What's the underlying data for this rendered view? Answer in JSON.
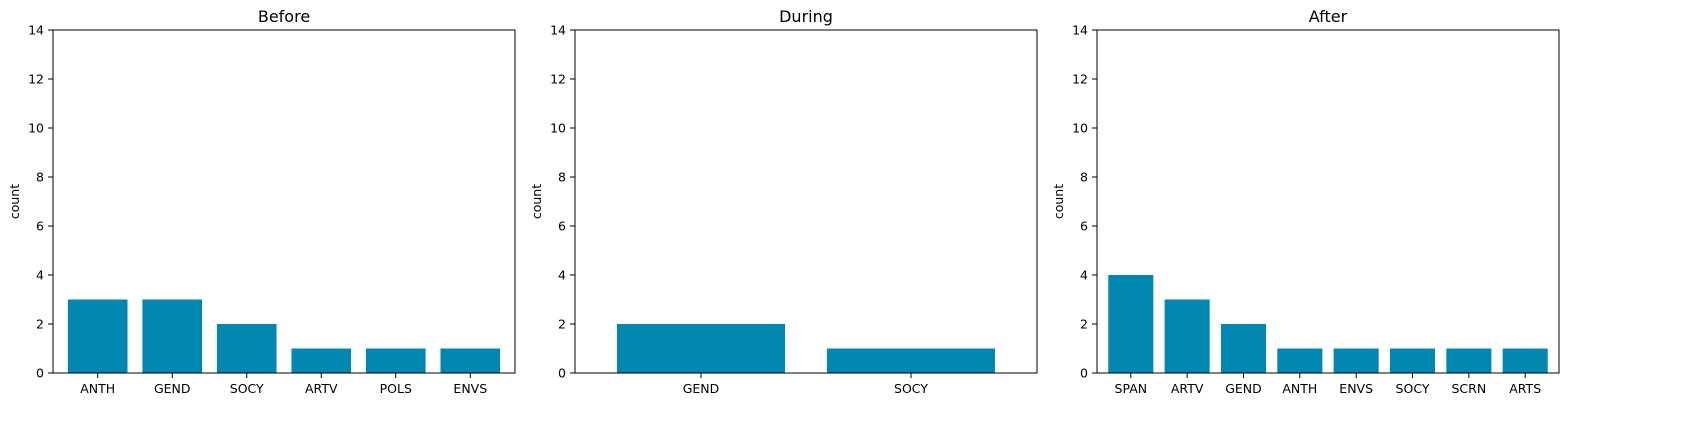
{
  "chart_data": [
    {
      "type": "bar",
      "title": "Before",
      "xlabel": "",
      "ylabel": "count",
      "categories": [
        "ANTH",
        "GEND",
        "SOCY",
        "ARTV",
        "POLS",
        "ENVS"
      ],
      "values": [
        3,
        3,
        2,
        1,
        1,
        1
      ],
      "ylim": [
        0,
        14
      ],
      "yticks": [
        "0",
        "2",
        "4",
        "6",
        "8",
        "10",
        "12",
        "14"
      ],
      "grid": false,
      "color": "#0288b0"
    },
    {
      "type": "bar",
      "title": "During",
      "xlabel": "",
      "ylabel": "count",
      "categories": [
        "GEND",
        "SOCY"
      ],
      "values": [
        2,
        1
      ],
      "ylim": [
        0,
        14
      ],
      "yticks": [
        "0",
        "2",
        "4",
        "6",
        "8",
        "10",
        "12",
        "14"
      ],
      "grid": false,
      "color": "#0288b0"
    },
    {
      "type": "bar",
      "title": "After",
      "xlabel": "",
      "ylabel": "count",
      "categories": [
        "SPAN",
        "ARTV",
        "GEND",
        "ANTH",
        "ENVS",
        "SOCY",
        "SCRN",
        "ARTS"
      ],
      "values": [
        4,
        3,
        2,
        1,
        1,
        1,
        1,
        1
      ],
      "ylim": [
        0,
        14
      ],
      "yticks": [
        "0",
        "2",
        "4",
        "6",
        "8",
        "10",
        "12",
        "14"
      ],
      "grid": false,
      "color": "#0288b0"
    }
  ]
}
